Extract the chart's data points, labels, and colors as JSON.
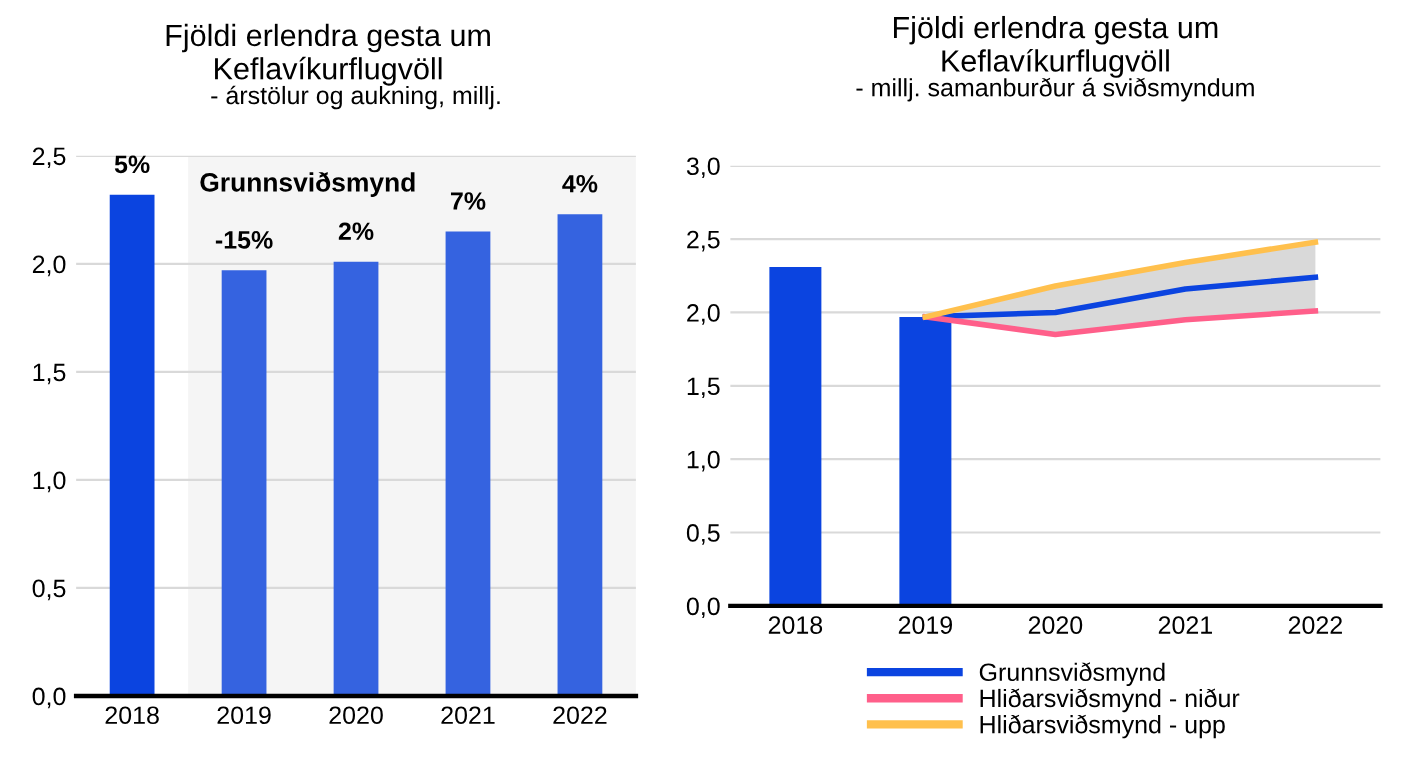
{
  "chart_data": [
    {
      "type": "bar",
      "title": "Fjöldi erlendra gesta um\nKeflavíkurflugvöll",
      "subtitle": "- árstölur og aukning, millj.",
      "categories": [
        "2018",
        "2019",
        "2020",
        "2021",
        "2022"
      ],
      "values": [
        2.32,
        1.97,
        2.01,
        2.15,
        2.23
      ],
      "colors": [
        "#0b44e0",
        "#3563e0",
        "#3563e0",
        "#3563e0",
        "#3563e0"
      ],
      "annotations": [
        {
          "text": "5%",
          "x": "2018",
          "y": 2.32
        },
        {
          "text": "-15%",
          "x": "2019",
          "y": 1.97
        },
        {
          "text": "2%",
          "x": "2020",
          "y": 2.01
        },
        {
          "text": "7%",
          "x": "2021",
          "y": 2.15
        },
        {
          "text": "4%",
          "x": "2022",
          "y": 2.23
        }
      ],
      "bands": [
        {
          "axis": "x",
          "from": "2019",
          "to": "2022",
          "label": "Grunnsviðsmynd",
          "color": "#f5f5f5"
        }
      ],
      "ylim": [
        0,
        2.5
      ],
      "yticks": [
        {
          "value": 0,
          "label": "0,0"
        },
        {
          "value": 0.5,
          "label": "0,5"
        },
        {
          "value": 1,
          "label": "1,0"
        },
        {
          "value": 1.5,
          "label": "1,5"
        },
        {
          "value": 2,
          "label": "2,0"
        },
        {
          "value": 2.5,
          "label": "2,5"
        }
      ],
      "grid": "y",
      "legend": false
    },
    {
      "type": "line",
      "title": "Fjöldi erlendra gesta um\nKeflavíkurflugvöll",
      "subtitle": "- millj. samanburður á sviðsmyndum",
      "categories": [
        "2018",
        "2019",
        "2020",
        "2021",
        "2022"
      ],
      "series": [
        {
          "type": "bar",
          "color": "#0b44e0",
          "values": [
            2.31,
            1.97,
            null,
            null,
            null
          ]
        },
        {
          "name": "Grunnsviðsmynd",
          "color": "#0b44e0",
          "values": [
            null,
            1.97,
            2.0,
            2.16,
            2.24
          ],
          "lower": [
            null,
            1.97,
            1.85,
            1.95,
            2.01
          ],
          "upper": [
            null,
            1.97,
            2.18,
            2.34,
            2.48
          ]
        },
        {
          "name": "Hliðarsviðsmynd - niður",
          "color": "#ff5f8a",
          "values": [
            null,
            1.97,
            1.85,
            1.95,
            2.01
          ]
        },
        {
          "name": "Hliðarsviðsmynd - upp",
          "color": "#ffc04d",
          "values": [
            null,
            1.97,
            2.18,
            2.34,
            2.48
          ]
        }
      ],
      "ylim": [
        0,
        3
      ],
      "yticks": [
        {
          "value": 0,
          "label": "0,0"
        },
        {
          "value": 0.5,
          "label": "0,5"
        },
        {
          "value": 1,
          "label": "1,0"
        },
        {
          "value": 1.5,
          "label": "1,5"
        },
        {
          "value": 2,
          "label": "2,0"
        },
        {
          "value": 2.5,
          "label": "2,5"
        },
        {
          "value": 3,
          "label": "3,0"
        }
      ],
      "grid": "y",
      "legend": "bottom"
    }
  ]
}
